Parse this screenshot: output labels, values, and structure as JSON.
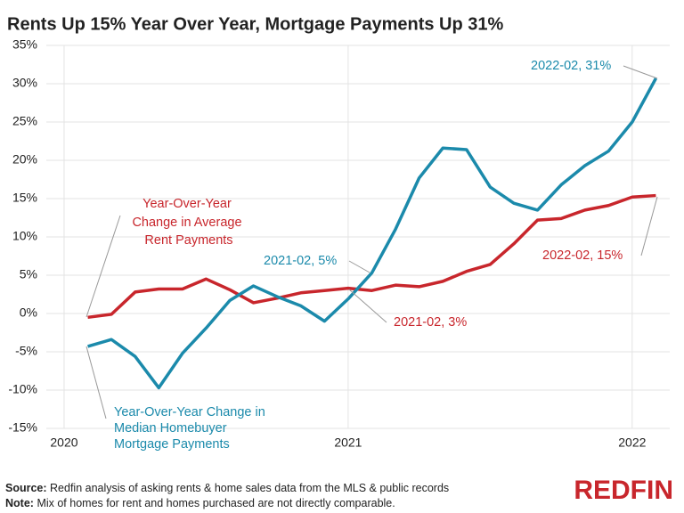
{
  "chart_data": {
    "type": "line",
    "title": "Rents Up 15% Year Over Year, Mortgage Payments Up 31%",
    "x": [
      "2020-02",
      "2020-03",
      "2020-04",
      "2020-05",
      "2020-06",
      "2020-07",
      "2020-08",
      "2020-09",
      "2020-10",
      "2020-11",
      "2020-12",
      "2021-01",
      "2021-02",
      "2021-03",
      "2021-04",
      "2021-05",
      "2021-06",
      "2021-07",
      "2021-08",
      "2021-09",
      "2021-10",
      "2021-11",
      "2021-12",
      "2022-01",
      "2022-02"
    ],
    "series": [
      {
        "name": "Year-Over-Year Change in Average Rent Payments",
        "color": "#c8262c",
        "values": [
          -0.5,
          -0.1,
          2.8,
          3.2,
          3.2,
          4.5,
          3.1,
          1.4,
          2.0,
          2.7,
          3.0,
          3.3,
          3.0,
          3.7,
          3.5,
          4.2,
          5.5,
          6.4,
          9.1,
          12.2,
          12.4,
          13.5,
          14.1,
          15.2,
          15.4
        ]
      },
      {
        "name": "Year-Over-Year Change in Median Homebuyer Mortgage Payments",
        "color": "#1b8aab",
        "values": [
          -4.3,
          -3.4,
          -5.6,
          -9.7,
          -5.2,
          -1.9,
          1.7,
          3.6,
          2.2,
          1.0,
          -1.0,
          1.9,
          5.3,
          11.0,
          17.7,
          21.6,
          21.4,
          16.5,
          14.4,
          13.5,
          16.8,
          19.3,
          21.2,
          25.0,
          30.7
        ]
      }
    ],
    "xlim": [
      "2019-12",
      "2022-03"
    ],
    "xticks": [
      "2020",
      "2021",
      "2022"
    ],
    "ylim": [
      -15,
      35
    ],
    "yticks": [
      {
        "value": -15,
        "label": "-15%"
      },
      {
        "value": -10,
        "label": "-10%"
      },
      {
        "value": -5,
        "label": "-5%"
      },
      {
        "value": 0,
        "label": "0%"
      },
      {
        "value": 5,
        "label": "5%"
      },
      {
        "value": 10,
        "label": "10%"
      },
      {
        "value": 15,
        "label": "15%"
      },
      {
        "value": 20,
        "label": "20%"
      },
      {
        "value": 25,
        "label": "25%"
      },
      {
        "value": 30,
        "label": "30%"
      },
      {
        "value": 35,
        "label": "35%"
      }
    ],
    "grid": true,
    "annotations": [
      {
        "text": "2021-02, 5%",
        "series": 1
      },
      {
        "text": "2021-02, 3%",
        "series": 0
      },
      {
        "text": "2022-02, 31%",
        "series": 1
      },
      {
        "text": "2022-02, 15%",
        "series": 0
      }
    ],
    "source_label": "Source:",
    "source": "Redfin analysis of asking rents & home sales data from the MLS & public records",
    "note_label": "Note:",
    "note": "Mix of homes for rent and homes purchased are not directly comparable.",
    "logo": "REDFIN"
  }
}
